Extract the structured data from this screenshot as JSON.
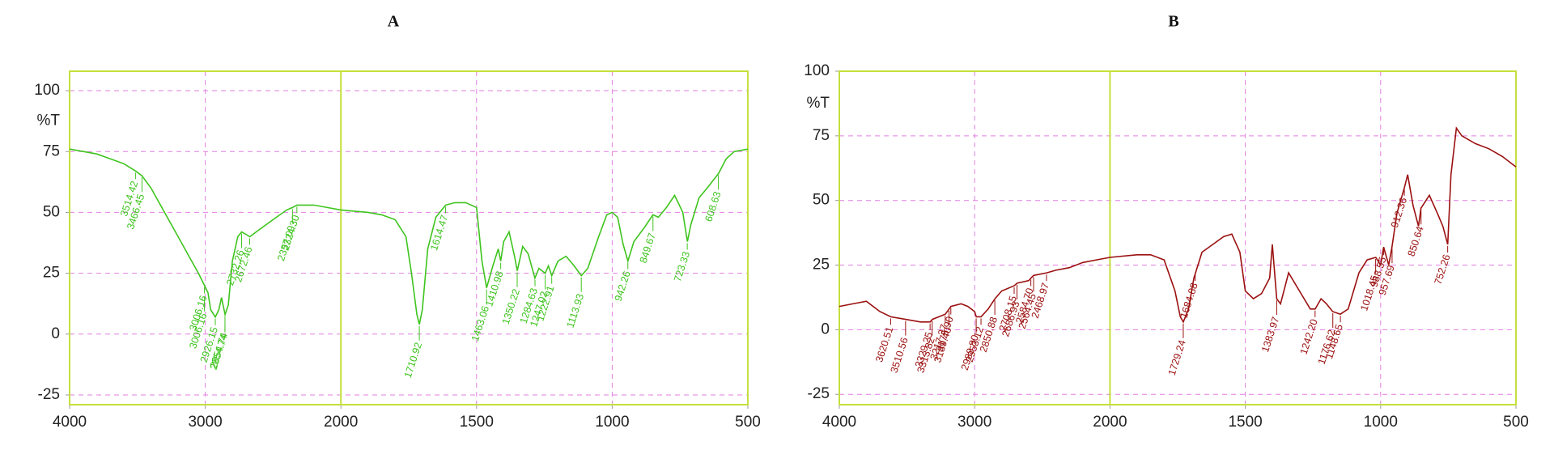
{
  "chart_data": [
    {
      "type": "line",
      "title": "A",
      "ylabel": "%T",
      "color": "#3ec41e",
      "xlim": [
        4000,
        500
      ],
      "x_break": {
        "at": 2000,
        "zoom": 2
      },
      "ylim": [
        -29,
        108
      ],
      "xticks": [
        4000,
        3000,
        2000,
        1500,
        1000,
        500
      ],
      "yticks": [
        -25,
        0,
        25,
        50,
        75,
        100
      ],
      "grid": true,
      "x": [
        4000,
        3900,
        3800,
        3700,
        3600,
        3514,
        3466,
        3400,
        3300,
        3200,
        3100,
        3050,
        3006,
        2980,
        2960,
        2926,
        2900,
        2880,
        2854,
        2830,
        2800,
        2760,
        2732,
        2700,
        2672,
        2600,
        2500,
        2400,
        2357,
        2324,
        2300,
        2200,
        2100,
        2000,
        1900,
        1850,
        1800,
        1760,
        1740,
        1720,
        1711,
        1700,
        1680,
        1650,
        1614,
        1580,
        1540,
        1500,
        1480,
        1463,
        1440,
        1420,
        1411,
        1400,
        1380,
        1360,
        1350,
        1330,
        1310,
        1285,
        1270,
        1247,
        1235,
        1223,
        1200,
        1170,
        1140,
        1114,
        1090,
        1050,
        1020,
        1000,
        980,
        960,
        942,
        920,
        880,
        850,
        830,
        800,
        770,
        740,
        723,
        710,
        680,
        650,
        608,
        580,
        550,
        500
      ],
      "values": [
        76,
        75,
        74,
        72,
        70,
        67,
        65,
        60,
        50,
        40,
        30,
        25,
        20,
        17,
        10,
        7,
        10,
        15,
        8,
        12,
        30,
        40,
        42,
        41,
        40,
        43,
        47,
        51,
        52,
        53,
        53,
        53,
        52,
        51,
        50,
        49,
        47,
        40,
        25,
        8,
        4,
        10,
        35,
        48,
        53,
        54,
        54,
        52,
        30,
        19,
        28,
        35,
        30,
        38,
        42,
        32,
        26,
        36,
        33,
        23,
        27,
        25,
        28,
        24,
        30,
        32,
        28,
        24,
        27,
        40,
        49,
        50,
        48,
        37,
        30,
        38,
        44,
        49,
        48,
        52,
        57,
        50,
        38,
        45,
        56,
        60,
        66,
        72,
        75,
        76
      ],
      "peaks": [
        {
          "x": 3514.42,
          "y": 67,
          "label": "3514.42"
        },
        {
          "x": 3466.45,
          "y": 65,
          "label": "3466.45"
        },
        {
          "x": 3006.16,
          "y": 20,
          "label": "3006.16"
        },
        {
          "x": 3006.16,
          "y": 16,
          "label": "3006.16"
        },
        {
          "x": 2926.15,
          "y": 7,
          "label": "2926.15"
        },
        {
          "x": 2854.74,
          "y": 8,
          "label": "2854.74"
        },
        {
          "x": 2854.74,
          "y": 4,
          "label": "2854.74"
        },
        {
          "x": 2732.26,
          "y": 42,
          "label": "2732.26"
        },
        {
          "x": 2672.46,
          "y": 40,
          "label": "2672.46"
        },
        {
          "x": 2357.09,
          "y": 52,
          "label": "2357.09"
        },
        {
          "x": 2324.3,
          "y": 53,
          "label": "2324.30"
        },
        {
          "x": 1710.92,
          "y": 4,
          "label": "1710.92"
        },
        {
          "x": 1614.47,
          "y": 53,
          "label": "1614.47"
        },
        {
          "x": 1463.06,
          "y": 19,
          "label": "1463.06"
        },
        {
          "x": 1410.98,
          "y": 30,
          "label": "1410.98"
        },
        {
          "x": 1350.22,
          "y": 26,
          "label": "1350.22"
        },
        {
          "x": 1284.63,
          "y": 23,
          "label": "1284.63"
        },
        {
          "x": 1247.02,
          "y": 25,
          "label": "1247.02"
        },
        {
          "x": 1222.91,
          "y": 24,
          "label": "1222.91"
        },
        {
          "x": 1113.93,
          "y": 24,
          "label": "1113.93"
        },
        {
          "x": 942.26,
          "y": 30,
          "label": "942.26"
        },
        {
          "x": 849.67,
          "y": 49,
          "label": "849.67"
        },
        {
          "x": 723.33,
          "y": 38,
          "label": "723.33"
        },
        {
          "x": 608.63,
          "y": 66,
          "label": "608.63"
        }
      ]
    },
    {
      "type": "line",
      "title": "B",
      "ylabel": "%T",
      "color": "#9b1010",
      "xlim": [
        4000,
        500
      ],
      "x_break": {
        "at": 2000,
        "zoom": 2
      },
      "ylim": [
        -29,
        100
      ],
      "xticks": [
        4000,
        3000,
        2000,
        1500,
        1000,
        500
      ],
      "yticks": [
        -25,
        0,
        25,
        50,
        75,
        100
      ],
      "grid": true,
      "x": [
        4000,
        3900,
        3800,
        3700,
        3620,
        3510,
        3400,
        3329,
        3313,
        3217,
        3189,
        3175,
        3100,
        3050,
        3000,
        2988,
        2953,
        2900,
        2850,
        2800,
        2708,
        2686,
        2600,
        2584,
        2564,
        2468,
        2400,
        2300,
        2200,
        2100,
        2000,
        1900,
        1850,
        1800,
        1760,
        1740,
        1729,
        1710,
        1690,
        1684,
        1660,
        1620,
        1580,
        1550,
        1520,
        1500,
        1470,
        1440,
        1410,
        1400,
        1384,
        1370,
        1340,
        1300,
        1260,
        1242,
        1220,
        1200,
        1177,
        1149,
        1120,
        1080,
        1050,
        1018,
        1000,
        989,
        970,
        958,
        940,
        912,
        900,
        880,
        860,
        851,
        820,
        790,
        770,
        752,
        740,
        720,
        700,
        650,
        600,
        550,
        500
      ],
      "values": [
        9,
        10,
        11,
        7,
        5,
        4,
        3,
        3,
        4,
        6,
        8,
        9,
        10,
        9,
        7,
        5,
        5,
        8,
        12,
        15,
        17,
        18,
        19,
        20,
        21,
        22,
        23,
        24,
        26,
        27,
        28,
        29,
        29,
        27,
        15,
        5,
        3,
        8,
        20,
        22,
        30,
        33,
        36,
        37,
        30,
        15,
        12,
        14,
        20,
        33,
        12,
        10,
        22,
        15,
        8,
        8,
        12,
        10,
        7,
        6,
        8,
        22,
        27,
        28,
        25,
        32,
        25,
        32,
        45,
        55,
        60,
        48,
        40,
        47,
        52,
        45,
        40,
        33,
        60,
        78,
        75,
        72,
        70,
        67,
        63
      ],
      "peaks": [
        {
          "x": 3620.51,
          "y": 5,
          "label": "3620.51"
        },
        {
          "x": 3510.56,
          "y": 4,
          "label": "3510.56"
        },
        {
          "x": 3329.25,
          "y": 3,
          "label": "3329.25"
        },
        {
          "x": 3313.82,
          "y": 4,
          "label": "3313.82"
        },
        {
          "x": 3217.37,
          "y": 6,
          "label": "3217.37"
        },
        {
          "x": 3189.4,
          "y": 8,
          "label": "3189.40"
        },
        {
          "x": 3175.9,
          "y": 9,
          "label": "3175.90"
        },
        {
          "x": 2988.8,
          "y": 5,
          "label": "2988.80"
        },
        {
          "x": 2953.12,
          "y": 5,
          "label": "2953.12"
        },
        {
          "x": 2850.88,
          "y": 12,
          "label": "2850.88"
        },
        {
          "x": 2708.15,
          "y": 17,
          "label": "2708.15"
        },
        {
          "x": 2686.93,
          "y": 18,
          "label": "2686.93"
        },
        {
          "x": 2584.7,
          "y": 20,
          "label": "2584.70"
        },
        {
          "x": 2564.45,
          "y": 21,
          "label": "2564.45"
        },
        {
          "x": 2468.97,
          "y": 22,
          "label": "2468.97"
        },
        {
          "x": 1729.24,
          "y": 3,
          "label": "1729.24"
        },
        {
          "x": 1684.88,
          "y": 22,
          "label": "1684.88"
        },
        {
          "x": 1383.97,
          "y": 12,
          "label": "1383.97"
        },
        {
          "x": 1242.2,
          "y": 8,
          "label": "1242.20"
        },
        {
          "x": 1176.62,
          "y": 7,
          "label": "1176.62"
        },
        {
          "x": 1148.65,
          "y": 6,
          "label": "1148.65"
        },
        {
          "x": 1018.45,
          "y": 28,
          "label": "1018.45"
        },
        {
          "x": 988.55,
          "y": 32,
          "label": "988.55"
        },
        {
          "x": 957.69,
          "y": 32,
          "label": "957.69"
        },
        {
          "x": 912.36,
          "y": 55,
          "label": "912.36"
        },
        {
          "x": 850.64,
          "y": 47,
          "label": "850.64"
        },
        {
          "x": 752.26,
          "y": 33,
          "label": "752.26"
        }
      ]
    }
  ]
}
